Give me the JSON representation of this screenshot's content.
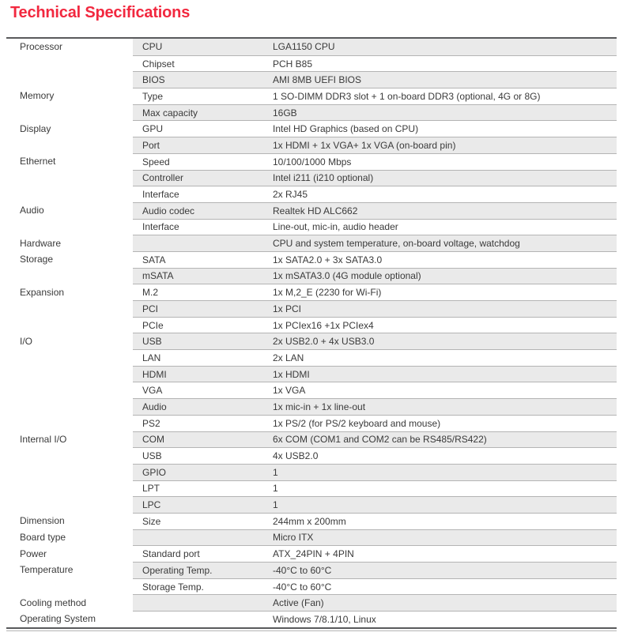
{
  "page_title": "Technical Specifications",
  "colors": {
    "accent": "#F2283F",
    "text": "#3A3A3A",
    "row_shade": "#EAEAEA",
    "rule_dark": "#595A5C",
    "rule_light": "#B4B4B4"
  },
  "table": {
    "columns": [
      "category",
      "item",
      "value"
    ],
    "rows": [
      {
        "category": "Processor",
        "label": "CPU",
        "value": "LGA1150 CPU"
      },
      {
        "category": "",
        "label": "Chipset",
        "value": "PCH B85"
      },
      {
        "category": "",
        "label": "BIOS",
        "value": "AMI 8MB UEFI BIOS"
      },
      {
        "category": "Memory",
        "label": "Type",
        "value": "1 SO-DIMM DDR3 slot + 1 on-board DDR3 (optional, 4G or 8G)"
      },
      {
        "category": "",
        "label": "Max capacity",
        "value": "16GB"
      },
      {
        "category": "Display",
        "label": "GPU",
        "value": "Intel HD Graphics (based on CPU)"
      },
      {
        "category": "",
        "label": "Port",
        "value": "1x HDMI + 1x VGA+ 1x VGA (on-board pin)"
      },
      {
        "category": "Ethernet",
        "label": "Speed",
        "value": "10/100/1000 Mbps"
      },
      {
        "category": "",
        "label": "Controller",
        "value": "Intel i211 (i210 optional)"
      },
      {
        "category": "",
        "label": "Interface",
        "value": "2x RJ45"
      },
      {
        "category": "Audio",
        "label": "Audio codec",
        "value": "Realtek HD ALC662"
      },
      {
        "category": "",
        "label": "Interface",
        "value": "Line-out, mic-in, audio header"
      },
      {
        "category": "Hardware",
        "label": "",
        "value": "CPU and system temperature, on-board voltage, watchdog"
      },
      {
        "category": "Storage",
        "label": "SATA",
        "value": "1x SATA2.0 + 3x SATA3.0"
      },
      {
        "category": "",
        "label": "mSATA",
        "value": "1x mSATA3.0 (4G module optional)"
      },
      {
        "category": "Expansion",
        "label": "M.2",
        "value": "1x M,2_E (2230 for Wi-Fi)"
      },
      {
        "category": "",
        "label": "PCI",
        "value": "1x PCI"
      },
      {
        "category": "",
        "label": "PCIe",
        "value": "1x PCIex16 +1x PCIex4"
      },
      {
        "category": "I/O",
        "label": "USB",
        "value": "2x USB2.0 + 4x USB3.0"
      },
      {
        "category": "",
        "label": "LAN",
        "value": "2x LAN"
      },
      {
        "category": "",
        "label": "HDMI",
        "value": "1x HDMI"
      },
      {
        "category": "",
        "label": "VGA",
        "value": "1x VGA"
      },
      {
        "category": "",
        "label": "Audio",
        "value": "1x mic-in + 1x line-out"
      },
      {
        "category": "",
        "label": "PS2",
        "value": "1x PS/2 (for PS/2 keyboard and mouse)"
      },
      {
        "category": "Internal I/O",
        "label": "COM",
        "value": "6x COM (COM1 and COM2 can be RS485/RS422)"
      },
      {
        "category": "",
        "label": "USB",
        "value": "4x USB2.0"
      },
      {
        "category": "",
        "label": "GPIO",
        "value": "1"
      },
      {
        "category": "",
        "label": "LPT",
        "value": "1"
      },
      {
        "category": "",
        "label": "LPC",
        "value": "1"
      },
      {
        "category": "Dimension",
        "label": "Size",
        "value": "244mm x 200mm"
      },
      {
        "category": "Board type",
        "label": "",
        "value": "Micro ITX"
      },
      {
        "category": "Power",
        "label": "Standard port",
        "value": "ATX_24PIN + 4PIN"
      },
      {
        "category": "Temperature",
        "label": "Operating Temp.",
        "value": "-40°C to 60°C"
      },
      {
        "category": "",
        "label": "Storage Temp.",
        "value": "-40°C to 60°C"
      },
      {
        "category": "Cooling method",
        "label": "",
        "value": "Active (Fan)"
      },
      {
        "category": "Operating System",
        "label": "",
        "value": "Windows 7/8.1/10, Linux"
      }
    ]
  }
}
